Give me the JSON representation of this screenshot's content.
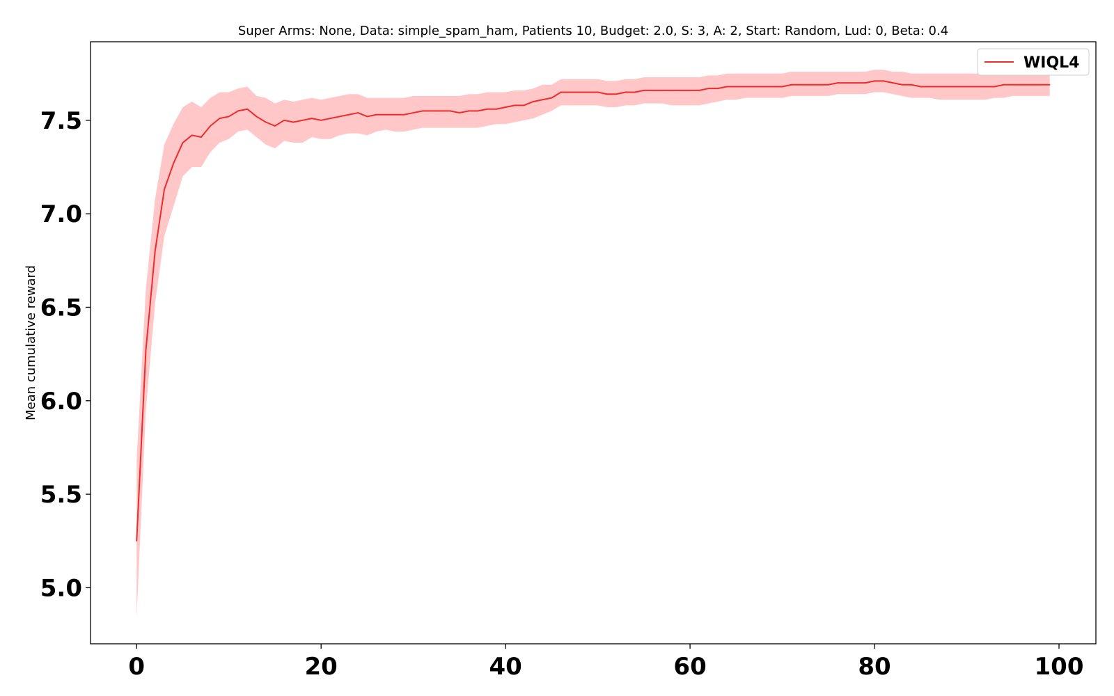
{
  "chart_data": {
    "type": "line",
    "title": "Super Arms: None, Data: simple_spam_ham, Patients 10, Budget: 2.0, S: 3, A: 2, Start: Random, Lud: 0, Beta: 0.4",
    "xlabel": "",
    "ylabel": "Mean cumulative reward",
    "xlim": [
      -5,
      104
    ],
    "ylim": [
      4.7,
      7.92
    ],
    "xticks": [
      0,
      20,
      40,
      60,
      80,
      100
    ],
    "yticks": [
      5.0,
      5.5,
      6.0,
      6.5,
      7.0,
      7.5
    ],
    "xtick_labels": [
      "0",
      "20",
      "40",
      "60",
      "80",
      "100"
    ],
    "ytick_labels": [
      "5.0",
      "5.5",
      "6.0",
      "6.5",
      "7.0",
      "7.5"
    ],
    "grid": false,
    "legend_position": "top-right",
    "series": [
      {
        "name": "WIQL4",
        "color": "#ee2c2c",
        "band_color": "#ffc7c7",
        "x": [
          0,
          1,
          2,
          3,
          4,
          5,
          6,
          7,
          8,
          9,
          10,
          11,
          12,
          13,
          14,
          15,
          16,
          17,
          18,
          19,
          20,
          21,
          22,
          23,
          24,
          25,
          26,
          27,
          28,
          29,
          30,
          31,
          32,
          33,
          34,
          35,
          36,
          37,
          38,
          39,
          40,
          41,
          42,
          43,
          44,
          45,
          46,
          47,
          48,
          49,
          50,
          51,
          52,
          53,
          54,
          55,
          56,
          57,
          58,
          59,
          60,
          61,
          62,
          63,
          64,
          65,
          66,
          67,
          68,
          69,
          70,
          71,
          72,
          73,
          74,
          75,
          76,
          77,
          78,
          79,
          80,
          81,
          82,
          83,
          84,
          85,
          86,
          87,
          88,
          89,
          90,
          91,
          92,
          93,
          94,
          95,
          96,
          97,
          98,
          99
        ],
        "y": [
          5.25,
          6.27,
          6.8,
          7.13,
          7.27,
          7.38,
          7.42,
          7.41,
          7.47,
          7.51,
          7.52,
          7.55,
          7.56,
          7.52,
          7.49,
          7.47,
          7.5,
          7.49,
          7.5,
          7.51,
          7.5,
          7.51,
          7.52,
          7.53,
          7.54,
          7.52,
          7.53,
          7.53,
          7.53,
          7.53,
          7.54,
          7.55,
          7.55,
          7.55,
          7.55,
          7.54,
          7.55,
          7.55,
          7.56,
          7.56,
          7.57,
          7.58,
          7.58,
          7.6,
          7.61,
          7.62,
          7.65,
          7.65,
          7.65,
          7.65,
          7.65,
          7.64,
          7.64,
          7.65,
          7.65,
          7.66,
          7.66,
          7.66,
          7.66,
          7.66,
          7.66,
          7.66,
          7.67,
          7.67,
          7.68,
          7.68,
          7.68,
          7.68,
          7.68,
          7.68,
          7.68,
          7.69,
          7.69,
          7.69,
          7.69,
          7.69,
          7.7,
          7.7,
          7.7,
          7.7,
          7.71,
          7.71,
          7.7,
          7.69,
          7.69,
          7.68,
          7.68,
          7.68,
          7.68,
          7.68,
          7.68,
          7.68,
          7.68,
          7.68,
          7.69,
          7.69,
          7.69,
          7.69,
          7.69,
          7.69
        ],
        "lower": [
          4.84,
          5.95,
          6.52,
          6.88,
          7.04,
          7.2,
          7.25,
          7.25,
          7.33,
          7.38,
          7.4,
          7.44,
          7.45,
          7.41,
          7.37,
          7.35,
          7.39,
          7.38,
          7.38,
          7.41,
          7.4,
          7.4,
          7.42,
          7.43,
          7.43,
          7.42,
          7.44,
          7.45,
          7.44,
          7.44,
          7.45,
          7.46,
          7.46,
          7.46,
          7.46,
          7.46,
          7.46,
          7.46,
          7.47,
          7.48,
          7.48,
          7.49,
          7.5,
          7.51,
          7.53,
          7.55,
          7.58,
          7.58,
          7.58,
          7.58,
          7.58,
          7.57,
          7.57,
          7.58,
          7.58,
          7.59,
          7.59,
          7.59,
          7.58,
          7.58,
          7.58,
          7.58,
          7.59,
          7.6,
          7.61,
          7.61,
          7.62,
          7.62,
          7.62,
          7.62,
          7.62,
          7.63,
          7.63,
          7.63,
          7.63,
          7.63,
          7.64,
          7.64,
          7.64,
          7.64,
          7.65,
          7.65,
          7.64,
          7.63,
          7.62,
          7.62,
          7.62,
          7.61,
          7.61,
          7.61,
          7.61,
          7.61,
          7.61,
          7.62,
          7.62,
          7.63,
          7.63,
          7.63,
          7.63,
          7.63
        ],
        "upper": [
          5.68,
          6.6,
          7.08,
          7.37,
          7.48,
          7.57,
          7.6,
          7.57,
          7.62,
          7.65,
          7.65,
          7.67,
          7.68,
          7.63,
          7.62,
          7.59,
          7.61,
          7.6,
          7.61,
          7.62,
          7.61,
          7.62,
          7.63,
          7.64,
          7.64,
          7.62,
          7.62,
          7.62,
          7.62,
          7.62,
          7.63,
          7.63,
          7.63,
          7.63,
          7.63,
          7.63,
          7.64,
          7.64,
          7.65,
          7.65,
          7.65,
          7.66,
          7.66,
          7.67,
          7.69,
          7.69,
          7.72,
          7.72,
          7.72,
          7.72,
          7.72,
          7.71,
          7.71,
          7.72,
          7.72,
          7.73,
          7.73,
          7.73,
          7.73,
          7.73,
          7.73,
          7.73,
          7.74,
          7.74,
          7.75,
          7.75,
          7.75,
          7.75,
          7.75,
          7.75,
          7.75,
          7.76,
          7.76,
          7.76,
          7.76,
          7.76,
          7.76,
          7.76,
          7.76,
          7.76,
          7.77,
          7.77,
          7.76,
          7.76,
          7.75,
          7.75,
          7.75,
          7.75,
          7.75,
          7.75,
          7.75,
          7.75,
          7.75,
          7.75,
          7.76,
          7.76,
          7.76,
          7.76,
          7.76,
          7.76
        ]
      }
    ]
  }
}
